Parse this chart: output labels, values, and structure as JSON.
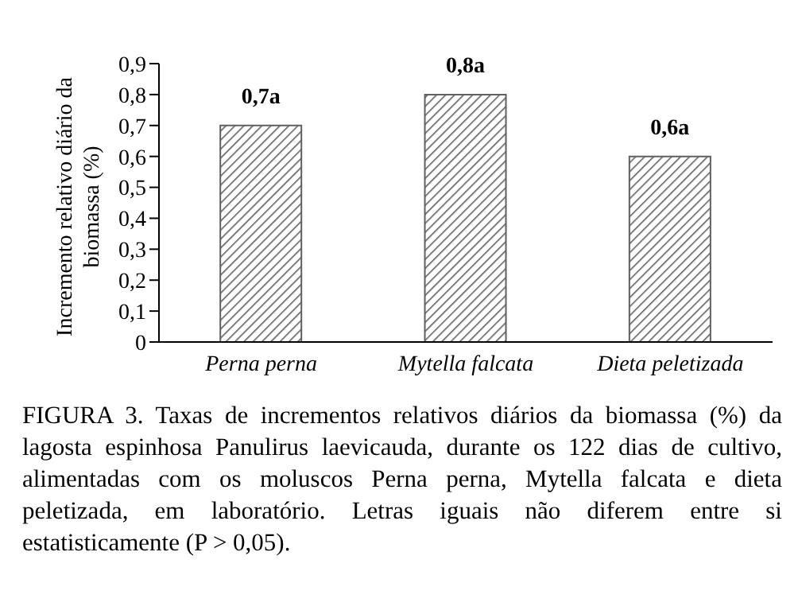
{
  "chart_data": {
    "type": "bar",
    "ylabel": "Incremento relativo diário da biomassa (%)",
    "categories": [
      "Perna perna",
      "Mytella falcata",
      "Dieta peletizada"
    ],
    "values": [
      0.7,
      0.8,
      0.6
    ],
    "color": "#606060",
    "value_labels": [
      "0,7a",
      "0,8a",
      "0,6a"
    ],
    "ylim": [
      0,
      0.9
    ],
    "yticks": [
      0,
      {
        "value": 0.1,
        "label": "0,1"
      },
      {
        "value": 0.2,
        "label": "0,2"
      },
      {
        "value": 0.3,
        "label": "0,3"
      },
      {
        "value": 0.4,
        "label": "0,4"
      },
      {
        "value": 0.5,
        "label": "0,5"
      },
      {
        "value": 0.6,
        "label": "0,6"
      },
      {
        "value": 0.7,
        "label": "0,7"
      },
      {
        "value": 0.8,
        "label": "0,8"
      },
      {
        "value": 0.9,
        "label": "0,9"
      }
    ],
    "grid": false,
    "annotations": [
      "FIGURA 3. Taxas de incrementos relativos diários da biomassa (%) da lagosta espinhosa Panulirus laevicauda, durante os 122 dias de cultivo, alimentadas com os moluscos Perna perna, Mytella falcata e dieta peletizada, em laboratório. Letras iguais não diferem entre si estatisticamente (P > 0,05)."
    ]
  }
}
